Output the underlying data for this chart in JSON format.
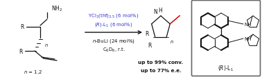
{
  "figsize": [
    3.78,
    1.13
  ],
  "dpi": 100,
  "bg_color": "#ffffff",
  "blue_color": "#3636cc",
  "black_color": "#111111",
  "red_color": "#cc0000",
  "gray_color": "#888888",
  "reagent_line1": "YCl$_3$(thf)$_{3.5}$ (6 mol%)",
  "reagent_line2": "$(R)$-L$_1$ (6 mol%)",
  "reagent_line3": "$n$-BuLi (24 mol%)",
  "reagent_line4": "C$_6$D$_6$, r.t.",
  "result_line1": "up to 99% conv.",
  "result_line2": "up to 77% e.e.",
  "n_label": "$n$ = 1,2",
  "ligand_label": "$(R)$-L$_1$",
  "nh2_label": "NH$_2$",
  "nh_label": "NH",
  "nh_label2": "NH"
}
